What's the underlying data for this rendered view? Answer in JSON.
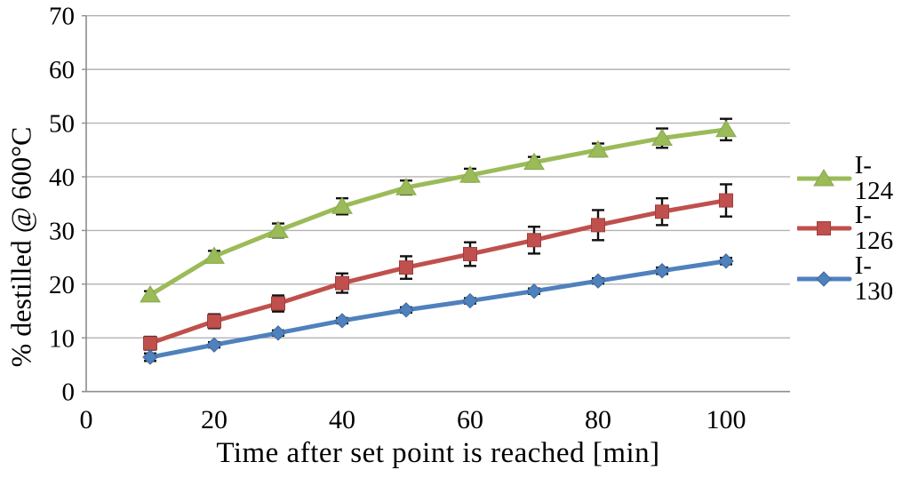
{
  "figure": {
    "background": "#ffffff",
    "axis_color": "#8e8e8e",
    "gridline_color": "#b3b3b3",
    "text_color": "#000000",
    "error_bar_color": "#111111"
  },
  "chart_data": {
    "type": "line",
    "title": "",
    "xlabel": "Time after set point is reached [min]",
    "ylabel": "% destilled @ 600°C",
    "x": [
      10,
      20,
      30,
      40,
      50,
      60,
      70,
      80,
      90,
      100
    ],
    "x_ticks": [
      0,
      20,
      40,
      60,
      80,
      100
    ],
    "y_ticks": [
      0,
      10,
      20,
      30,
      40,
      50,
      60,
      70
    ],
    "xlim": [
      0,
      110
    ],
    "ylim": [
      0,
      70
    ],
    "grid": "horizontal",
    "legend_position": "right",
    "error_bars": true,
    "series": [
      {
        "name": "I-124",
        "color": "#9bbb59",
        "edge_color": "#87a84b",
        "marker": "triangle",
        "values": [
          18.0,
          25.2,
          30.0,
          34.5,
          38.0,
          40.3,
          42.7,
          45.0,
          47.2,
          48.8
        ],
        "errors": [
          0.7,
          1.0,
          1.3,
          1.5,
          1.3,
          1.2,
          1.0,
          1.2,
          1.8,
          2.0
        ]
      },
      {
        "name": "I-126",
        "color": "#c0504d",
        "edge_color": "#a03f3d",
        "marker": "square",
        "values": [
          9.0,
          13.1,
          16.4,
          20.2,
          23.1,
          25.6,
          28.2,
          31.0,
          33.5,
          35.6
        ],
        "errors": [
          1.2,
          1.3,
          1.5,
          1.8,
          2.1,
          2.2,
          2.5,
          2.8,
          2.5,
          3.0
        ]
      },
      {
        "name": "I-130",
        "color": "#4f81bd",
        "edge_color": "#3d699e",
        "marker": "diamond",
        "values": [
          6.4,
          8.7,
          10.9,
          13.2,
          15.2,
          16.9,
          18.7,
          20.6,
          22.5,
          24.3
        ],
        "errors": [
          0.7,
          0.5,
          0.5,
          0.5,
          0.5,
          0.5,
          0.5,
          0.5,
          0.6,
          0.6
        ]
      }
    ]
  }
}
